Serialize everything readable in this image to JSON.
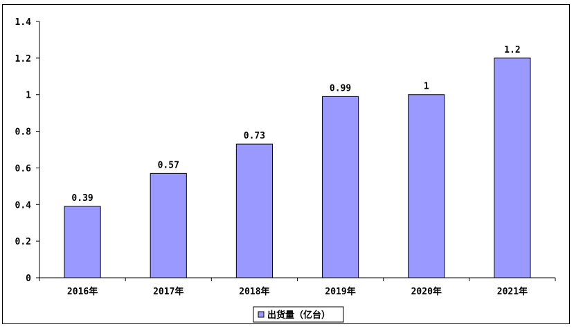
{
  "chart_data": {
    "type": "bar",
    "categories": [
      "2016年",
      "2017年",
      "2018年",
      "2019年",
      "2020年",
      "2021年"
    ],
    "series": [
      {
        "name": "出货量（亿台）",
        "values": [
          0.39,
          0.57,
          0.73,
          0.99,
          1,
          1.2
        ]
      }
    ],
    "data_labels": [
      "0.39",
      "0.57",
      "0.73",
      "0.99",
      "1",
      "1.2"
    ],
    "y_ticks": [
      "0",
      "0.2",
      "0.4",
      "0.6",
      "0.8",
      "1",
      "1.2",
      "1.4"
    ],
    "ylim": [
      0,
      1.4
    ],
    "grid": false,
    "legend_position": "bottom",
    "bar_color": "#9999ff",
    "bar_stroke": "#000000"
  }
}
